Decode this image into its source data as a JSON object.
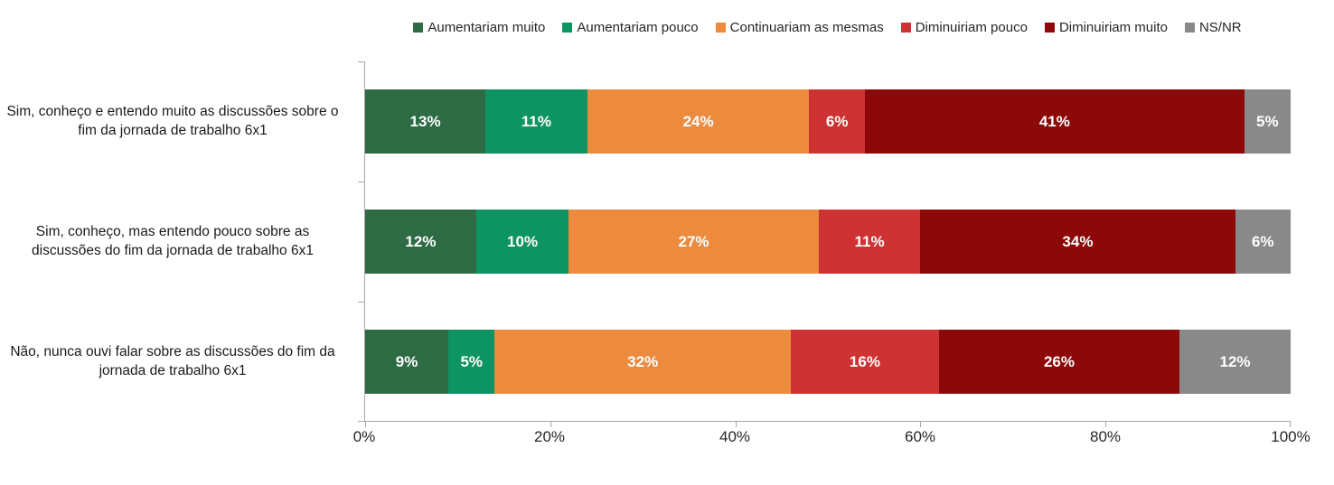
{
  "chart_data": {
    "type": "bar",
    "orientation": "horizontal",
    "stacked": true,
    "title": "",
    "xlabel": "",
    "ylabel": "",
    "xlim": [
      0,
      100
    ],
    "x_tick_labels": [
      "0%",
      "20%",
      "40%",
      "60%",
      "80%",
      "100%"
    ],
    "x_tick_values": [
      0,
      20,
      40,
      60,
      80,
      100
    ],
    "grid": false,
    "legend_position": "top",
    "axis_line_color": "#a6a6a6",
    "categories": [
      "Sim, conheço e entendo muito as discussões sobre o fim da jornada de trabalho 6x1",
      "Sim, conheço, mas entendo pouco sobre as discussões do fim da jornada de trabalho 6x1",
      "Não, nunca ouvi falar sobre as discussões do fim da jornada de trabalho 6x1"
    ],
    "series": [
      {
        "name": "Aumentariam muito",
        "color": "#2e6b44",
        "values": [
          13,
          12,
          9
        ]
      },
      {
        "name": "Aumentariam pouco",
        "color": "#0e9463",
        "values": [
          11,
          10,
          5
        ]
      },
      {
        "name": "Continuariam as mesmas",
        "color": "#ec8b3e",
        "values": [
          24,
          27,
          32
        ]
      },
      {
        "name": "Diminuiriam pouco",
        "color": "#ce3232",
        "values": [
          6,
          11,
          16
        ]
      },
      {
        "name": "Diminuiriam muito",
        "color": "#8d0909",
        "values": [
          41,
          34,
          26
        ]
      },
      {
        "name": "NS/NR",
        "color": "#898989",
        "values": [
          5,
          6,
          12
        ]
      }
    ],
    "data_label_suffix": "%",
    "data_label_color": "#ffffff"
  },
  "legend": {
    "items": [
      {
        "label": "Aumentariam muito",
        "color": "#2e6b44"
      },
      {
        "label": "Aumentariam pouco",
        "color": "#0e9463"
      },
      {
        "label": "Continuariam as mesmas",
        "color": "#ec8b3e"
      },
      {
        "label": "Diminuiriam pouco",
        "color": "#ce3232"
      },
      {
        "label": "Diminuiriam muito",
        "color": "#8d0909"
      },
      {
        "label": "NS/NR",
        "color": "#898989"
      }
    ]
  }
}
